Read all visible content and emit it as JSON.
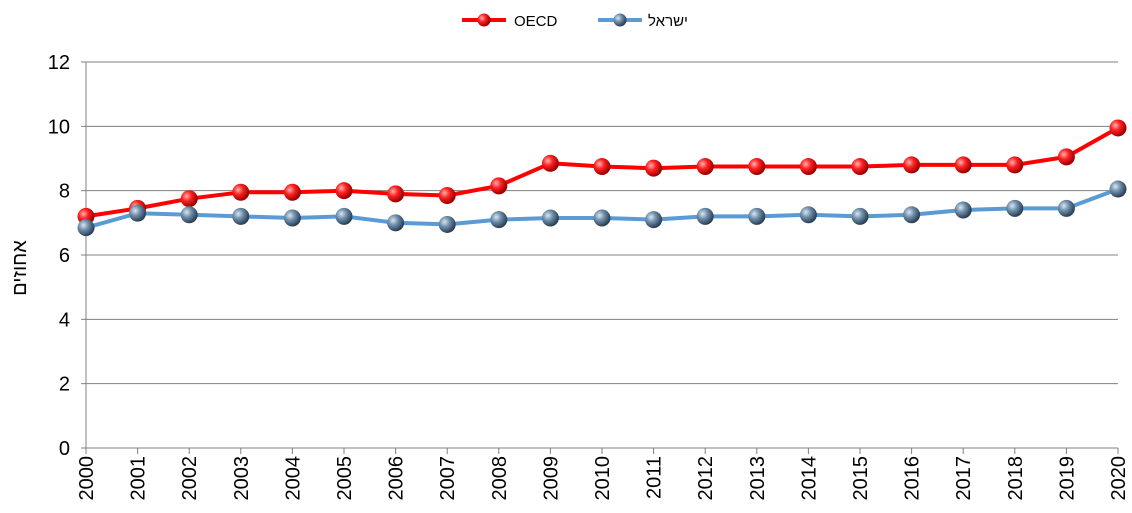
{
  "chart_data": {
    "type": "line",
    "title": "",
    "xlabel": "",
    "ylabel": "אחוזים",
    "x": [
      "2000",
      "2001",
      "2002",
      "2003",
      "2004",
      "2005",
      "2006",
      "2007",
      "2008",
      "2009",
      "2010",
      "2011",
      "2012",
      "2013",
      "2014",
      "2015",
      "2016",
      "2017",
      "2018",
      "2019",
      "2020"
    ],
    "ylim": [
      0,
      12
    ],
    "yticks": [
      "0",
      "2",
      "4",
      "6",
      "8",
      "10",
      "12"
    ],
    "grid": true,
    "legend_position": "top-center",
    "series": [
      {
        "name": "OECD",
        "color": "#ff0000",
        "values": [
          7.2,
          7.45,
          7.75,
          7.95,
          7.95,
          8.0,
          7.9,
          7.85,
          8.15,
          8.85,
          8.75,
          8.7,
          8.75,
          8.75,
          8.75,
          8.75,
          8.8,
          8.8,
          8.8,
          9.05,
          9.95
        ]
      },
      {
        "name": "ישראל",
        "color": "#5b9bd5",
        "values": [
          6.85,
          7.3,
          7.25,
          7.2,
          7.15,
          7.2,
          7.0,
          6.95,
          7.1,
          7.15,
          7.15,
          7.1,
          7.2,
          7.2,
          7.25,
          7.2,
          7.25,
          7.4,
          7.45,
          7.45,
          8.05
        ]
      }
    ]
  }
}
